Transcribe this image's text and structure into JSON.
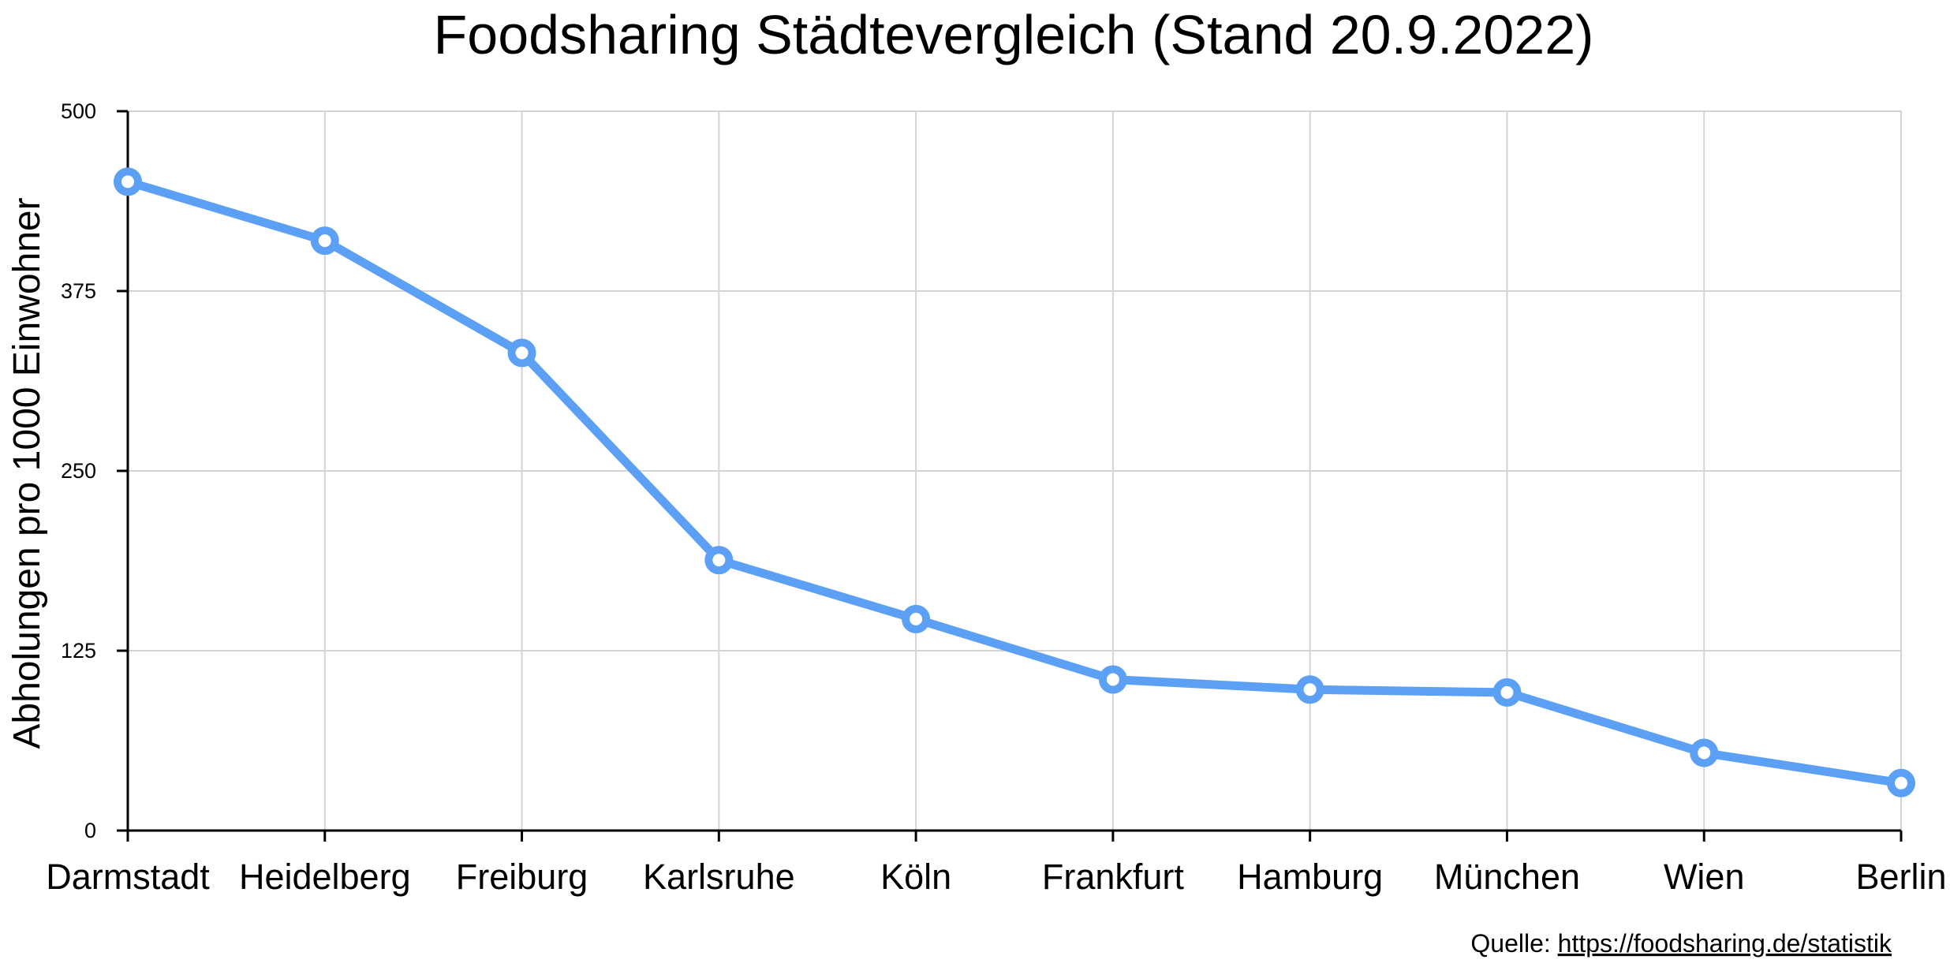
{
  "chart_data": {
    "type": "line",
    "title": "Foodsharing Städtevergleich (Stand 20.9.2022)",
    "xlabel": "",
    "ylabel": "Abholungen pro 1000 Einwohner",
    "ylim": [
      0,
      500
    ],
    "yticks": [
      0,
      125,
      250,
      375,
      500
    ],
    "grid": true,
    "categories": [
      "Darmstadt",
      "Heidelberg",
      "Freiburg",
      "Karlsruhe",
      "Köln",
      "Frankfurt",
      "Hamburg",
      "München",
      "Wien",
      "Berlin"
    ],
    "series": [
      {
        "values": [
          451,
          410,
          332,
          188,
          147,
          105,
          98,
          96,
          54,
          33
        ],
        "color": "#5ba0f5"
      }
    ]
  },
  "source": {
    "prefix": "Quelle: ",
    "link": "https://foodsharing.de/statistik"
  }
}
